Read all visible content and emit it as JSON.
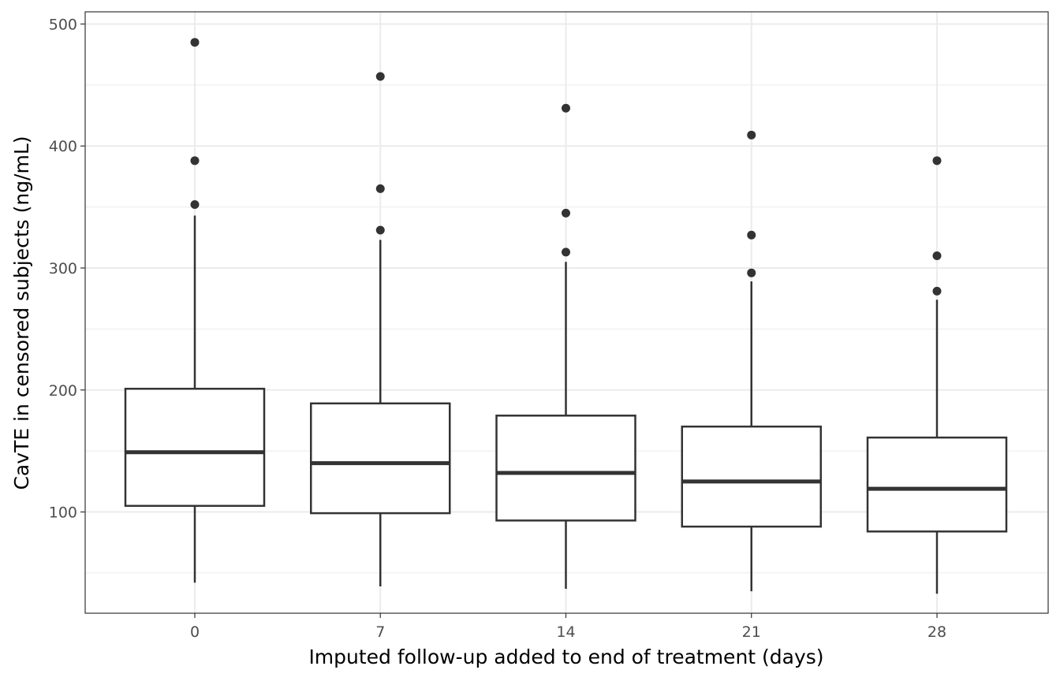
{
  "chart_data": {
    "type": "box",
    "title": "",
    "xlabel": "Imputed follow-up added to end of treatment (days)",
    "ylabel": "CavTE in censored subjects (ng/mL)",
    "categories": [
      "0",
      "7",
      "14",
      "21",
      "28"
    ],
    "y_ticks": [
      100,
      200,
      300,
      400,
      500
    ],
    "ylim": [
      17,
      510
    ],
    "grid": true,
    "boxes": [
      {
        "category": "0",
        "whisker_low": 42,
        "q1": 105,
        "median": 149,
        "q3": 201,
        "whisker_high": 343,
        "outliers": [
          352,
          388,
          485
        ]
      },
      {
        "category": "7",
        "whisker_low": 39,
        "q1": 99,
        "median": 140,
        "q3": 189,
        "whisker_high": 323,
        "outliers": [
          331,
          365,
          457
        ]
      },
      {
        "category": "14",
        "whisker_low": 37,
        "q1": 93,
        "median": 132,
        "q3": 179,
        "whisker_high": 305,
        "outliers": [
          313,
          345,
          431
        ]
      },
      {
        "category": "21",
        "whisker_low": 35,
        "q1": 88,
        "median": 125,
        "q3": 170,
        "whisker_high": 289,
        "outliers": [
          296,
          327,
          409
        ]
      },
      {
        "category": "28",
        "whisker_low": 33,
        "q1": 84,
        "median": 119,
        "q3": 161,
        "whisker_high": 274,
        "outliers": [
          281,
          310,
          388
        ]
      }
    ],
    "colors": {
      "box_line": "#333333",
      "box_fill": "#ffffff",
      "grid": "#ebebeb",
      "panel_border": "#333333"
    }
  }
}
